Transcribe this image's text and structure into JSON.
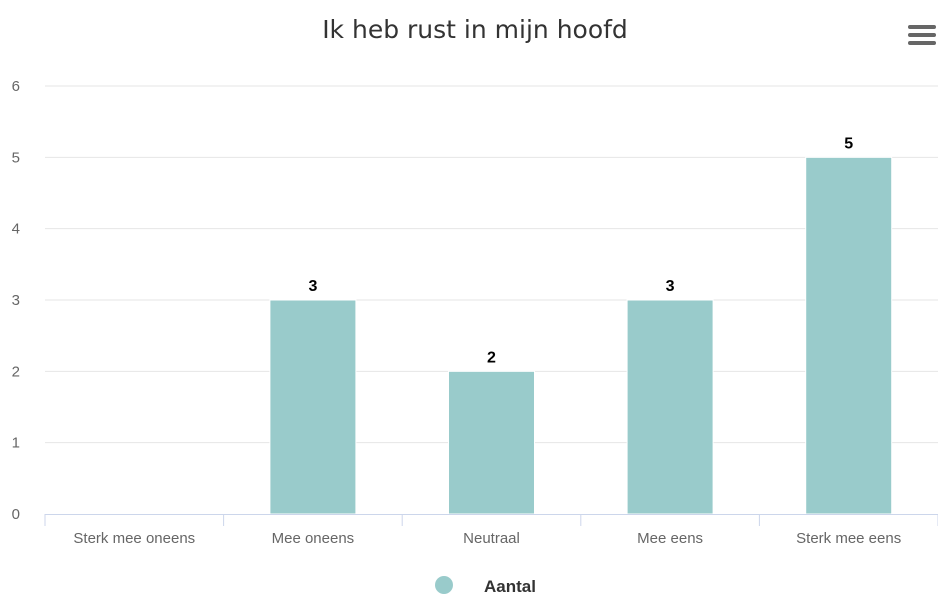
{
  "chart_data": {
    "type": "bar",
    "title": "Ik heb rust in mijn hoofd",
    "categories": [
      "Sterk mee oneens",
      "Mee oneens",
      "Neutraal",
      "Mee eens",
      "Sterk mee eens"
    ],
    "series": [
      {
        "name": "Aantal",
        "values": [
          0,
          3,
          2,
          3,
          5
        ],
        "color": "#99cbcb"
      }
    ],
    "ylim": [
      0,
      6
    ],
    "yticks": [
      0,
      1,
      2,
      3,
      4,
      5,
      6
    ],
    "data_labels": true,
    "grid": true,
    "legend": "bottom-center"
  },
  "menu": {
    "icon": "hamburger-menu-icon"
  },
  "colors": {
    "gridline": "#e6e6e6",
    "axis": "#ccd6eb",
    "bar": "#99cbcb"
  }
}
